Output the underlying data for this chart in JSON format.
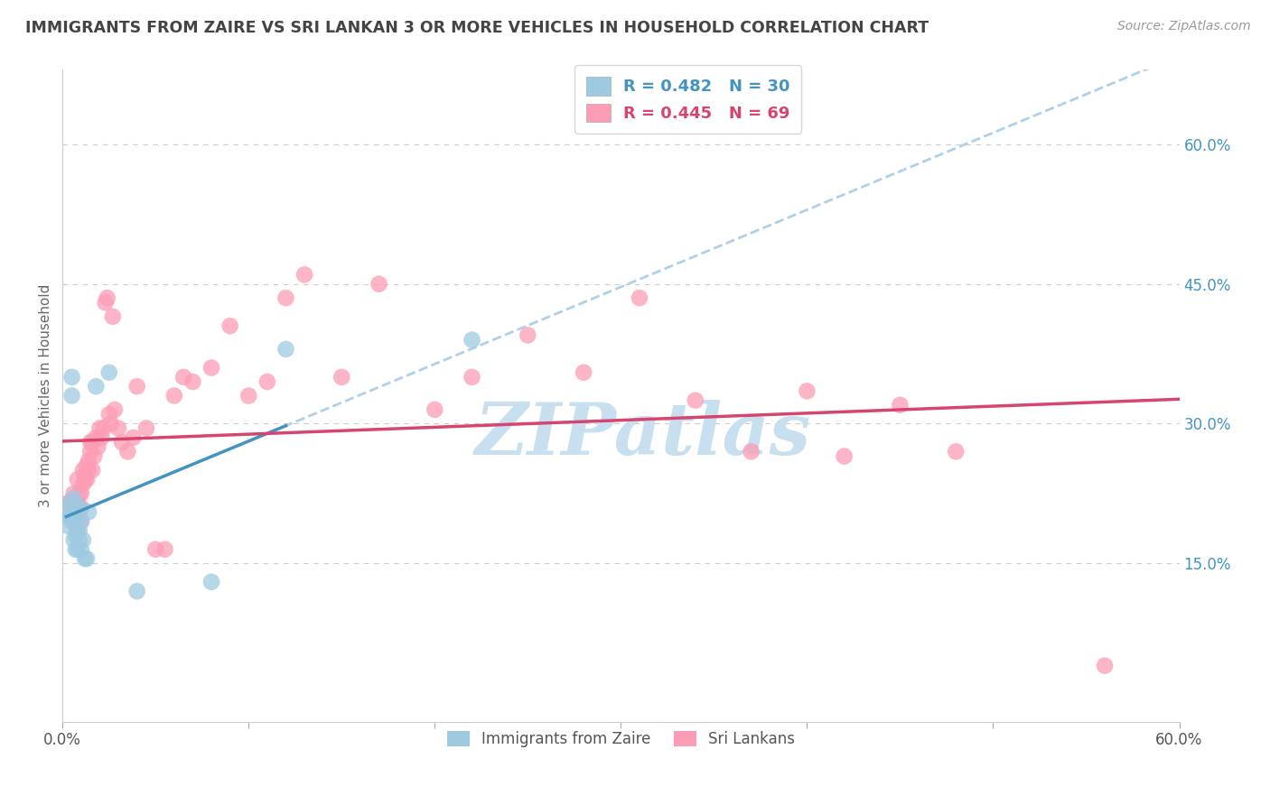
{
  "title": "IMMIGRANTS FROM ZAIRE VS SRI LANKAN 3 OR MORE VEHICLES IN HOUSEHOLD CORRELATION CHART",
  "source": "Source: ZipAtlas.com",
  "ylabel": "3 or more Vehicles in Household",
  "x_min": 0.0,
  "x_max": 0.6,
  "y_min": -0.02,
  "y_max": 0.68,
  "x_ticks": [
    0.0,
    0.1,
    0.2,
    0.3,
    0.4,
    0.5,
    0.6
  ],
  "x_tick_labels_show": [
    "0.0%",
    "",
    "",
    "",
    "",
    "",
    "60.0%"
  ],
  "y_ticks": [
    0.0,
    0.15,
    0.3,
    0.45,
    0.6
  ],
  "y_tick_labels": [
    "",
    "15.0%",
    "30.0%",
    "45.0%",
    "60.0%"
  ],
  "blue_line_color": "#4393c3",
  "blue_dashed_color": "#b0cfe8",
  "pink_line_color": "#d6456e",
  "blue_scatter_color": "#9ecae1",
  "pink_scatter_color": "#fc9db5",
  "background_color": "#ffffff",
  "grid_color": "#cccccc",
  "title_color": "#444444",
  "axis_label_color": "#666666",
  "tick_label_color_right": "#4393c3",
  "watermark_color": "#c8dff0",
  "blue_x": [
    0.002,
    0.003,
    0.004,
    0.004,
    0.005,
    0.005,
    0.005,
    0.006,
    0.006,
    0.007,
    0.007,
    0.007,
    0.008,
    0.008,
    0.008,
    0.009,
    0.009,
    0.009,
    0.01,
    0.01,
    0.011,
    0.012,
    0.013,
    0.014,
    0.018,
    0.025,
    0.04,
    0.08,
    0.12,
    0.22
  ],
  "blue_y": [
    0.205,
    0.19,
    0.215,
    0.2,
    0.35,
    0.33,
    0.195,
    0.22,
    0.175,
    0.21,
    0.18,
    0.165,
    0.2,
    0.185,
    0.165,
    0.21,
    0.175,
    0.185,
    0.165,
    0.195,
    0.175,
    0.155,
    0.155,
    0.205,
    0.34,
    0.355,
    0.12,
    0.13,
    0.38,
    0.39
  ],
  "pink_x": [
    0.003,
    0.004,
    0.005,
    0.006,
    0.006,
    0.007,
    0.007,
    0.008,
    0.008,
    0.009,
    0.009,
    0.01,
    0.01,
    0.01,
    0.011,
    0.011,
    0.012,
    0.012,
    0.013,
    0.013,
    0.014,
    0.014,
    0.015,
    0.015,
    0.016,
    0.016,
    0.017,
    0.018,
    0.019,
    0.02,
    0.021,
    0.022,
    0.023,
    0.024,
    0.025,
    0.026,
    0.027,
    0.028,
    0.03,
    0.032,
    0.035,
    0.038,
    0.04,
    0.045,
    0.05,
    0.055,
    0.06,
    0.065,
    0.07,
    0.08,
    0.09,
    0.1,
    0.11,
    0.12,
    0.13,
    0.15,
    0.17,
    0.2,
    0.22,
    0.25,
    0.28,
    0.31,
    0.34,
    0.37,
    0.4,
    0.42,
    0.45,
    0.48,
    0.56
  ],
  "pink_y": [
    0.215,
    0.2,
    0.215,
    0.195,
    0.225,
    0.2,
    0.215,
    0.215,
    0.24,
    0.205,
    0.225,
    0.21,
    0.225,
    0.195,
    0.235,
    0.25,
    0.245,
    0.24,
    0.255,
    0.24,
    0.26,
    0.25,
    0.28,
    0.27,
    0.25,
    0.28,
    0.265,
    0.285,
    0.275,
    0.295,
    0.285,
    0.295,
    0.43,
    0.435,
    0.31,
    0.3,
    0.415,
    0.315,
    0.295,
    0.28,
    0.27,
    0.285,
    0.34,
    0.295,
    0.165,
    0.165,
    0.33,
    0.35,
    0.345,
    0.36,
    0.405,
    0.33,
    0.345,
    0.435,
    0.46,
    0.35,
    0.45,
    0.315,
    0.35,
    0.395,
    0.355,
    0.435,
    0.325,
    0.27,
    0.335,
    0.265,
    0.32,
    0.27,
    0.04
  ]
}
